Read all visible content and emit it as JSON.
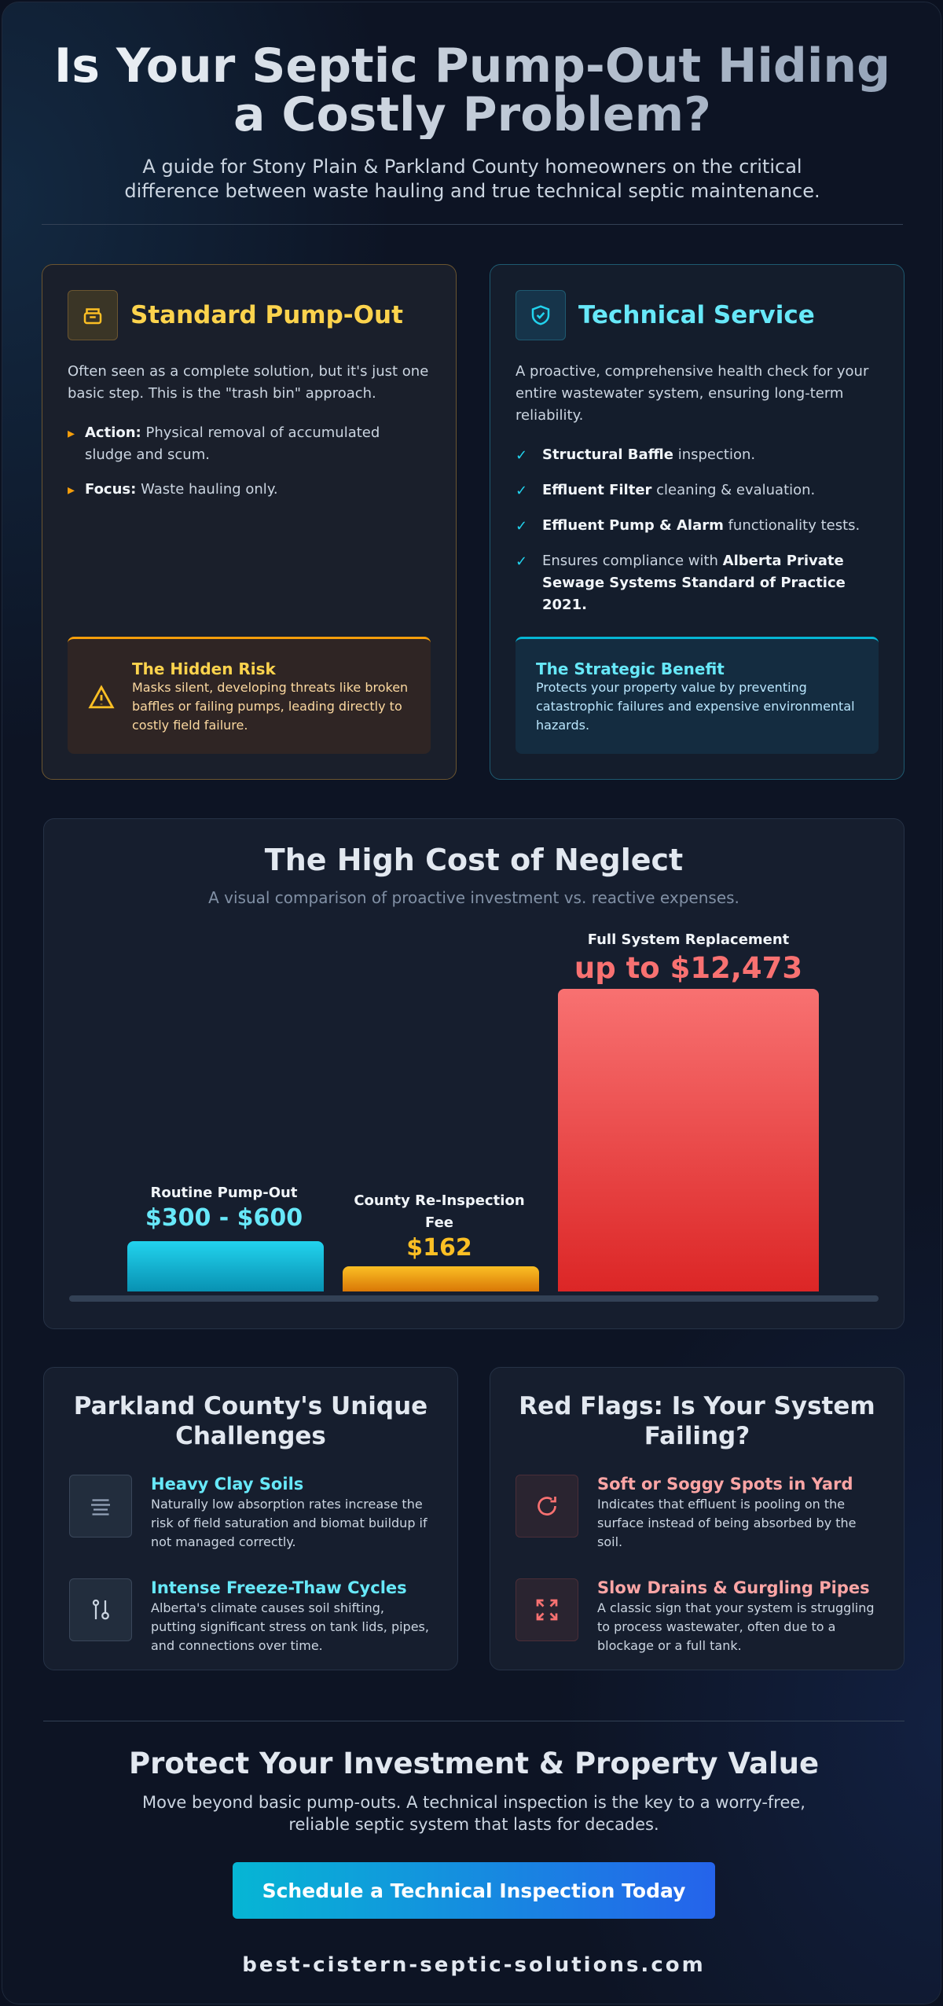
{
  "header": {
    "title": "Is Your Septic Pump-Out Hiding a Costly Problem?",
    "subtitle": "A guide for Stony Plain & Parkland County homeowners on the critical difference between waste hauling and true technical septic maintenance."
  },
  "comparison": [
    {
      "title": "Standard Pump-Out",
      "intro": "Often seen as a complete solution, but it's just one basic step. This is the \"trash bin\" approach.",
      "points": [
        {
          "lead": "Action:",
          "text": "Physical removal of accumulated sludge and scum."
        },
        {
          "lead": "Focus:",
          "text": "Waste hauling only."
        }
      ],
      "callout": {
        "title": "The Hidden Risk",
        "text": "Masks silent, developing threats like broken baffles or failing pumps, leading directly to costly field failure."
      }
    },
    {
      "title": "Technical Service",
      "intro": "A proactive, comprehensive health check for your entire wastewater system, ensuring long-term reliability.",
      "points": [
        {
          "lead": "Structural Baffle",
          "text": "inspection."
        },
        {
          "lead": "Effluent Filter",
          "text": "cleaning & evaluation."
        },
        {
          "lead": "Effluent Pump & Alarm",
          "text": "functionality tests."
        },
        {
          "text": "Ensures compliance with",
          "emphasis": "Alberta Private Sewage Systems Standard of Practice 2021."
        }
      ],
      "callout": {
        "title": "The Strategic Benefit",
        "text": "Protects your property value by preventing catastrophic failures and expensive environmental hazards."
      }
    }
  ],
  "cost": {
    "title": "The High Cost of Neglect",
    "subtitle": "A visual comparison of proactive investment vs. reactive expenses.",
    "items": [
      {
        "label": "Routine Pump-Out",
        "amount": "$300 - $600"
      },
      {
        "label": "County Re-Inspection Fee",
        "amount": "$162"
      },
      {
        "label": "Full System Replacement",
        "amount": "up to $12,473"
      }
    ]
  },
  "challenges": {
    "title": "Parkland County's Unique Challenges",
    "items": [
      {
        "title": "Heavy Clay Soils",
        "text": "Naturally low absorption rates increase the risk of field saturation and biomat buildup if not managed correctly."
      },
      {
        "title": "Intense Freeze-Thaw Cycles",
        "text": "Alberta's climate causes soil shifting, putting significant stress on tank lids, pipes, and connections over time."
      }
    ]
  },
  "red_flags": {
    "title": "Red Flags: Is Your System Failing?",
    "items": [
      {
        "title": "Soft or Soggy Spots in Yard",
        "text": "Indicates that effluent is pooling on the surface instead of being absorbed by the soil."
      },
      {
        "title": "Slow Drains & Gurgling Pipes",
        "text": "A classic sign that your system is struggling to process wastewater, often due to a blockage or a full tank."
      }
    ]
  },
  "footer": {
    "title": "Protect Your Investment & Property Value",
    "text": "Move beyond basic pump-outs. A technical inspection is the key to a worry-free, reliable septic system that lasts for decades.",
    "button": "Schedule a Technical Inspection Today",
    "website": "best-cistern-septic-solutions.com"
  }
}
